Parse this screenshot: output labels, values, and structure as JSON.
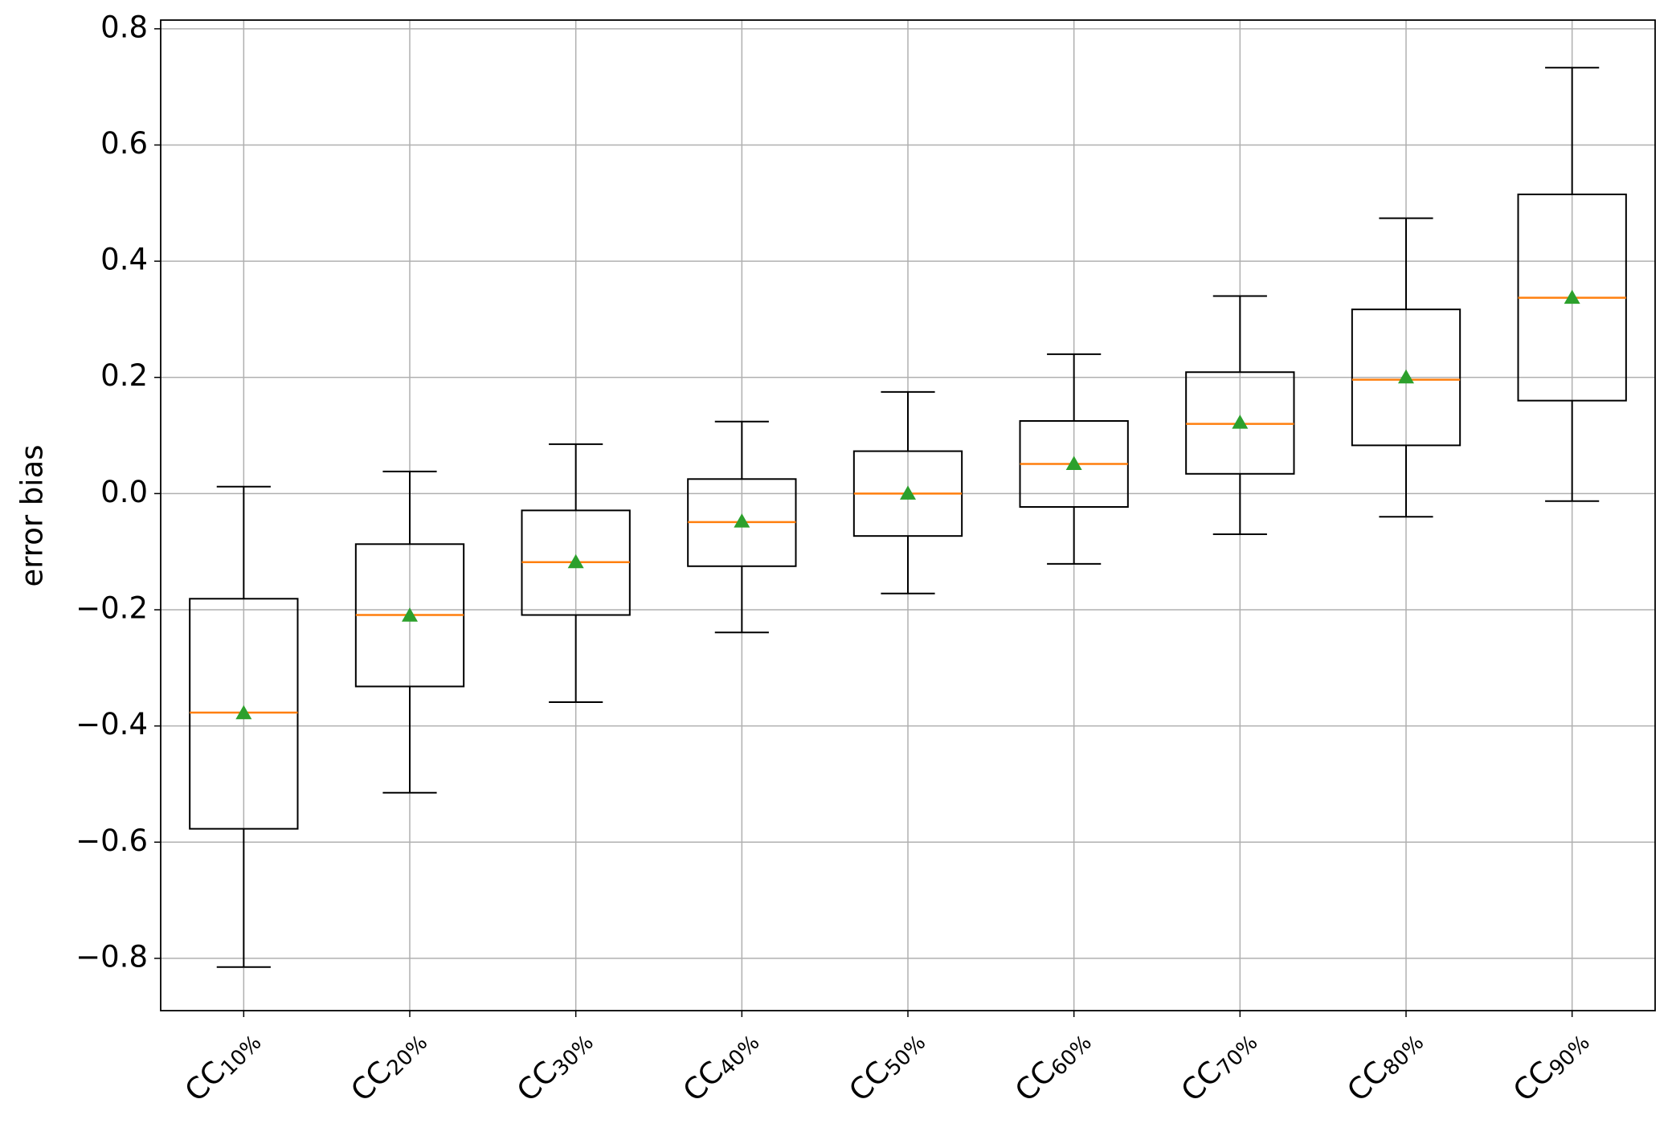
{
  "chart_data": {
    "type": "box",
    "ylabel": "error bias",
    "categories": [
      {
        "base": "CC",
        "sub": "10%"
      },
      {
        "base": "CC",
        "sub": "20%"
      },
      {
        "base": "CC",
        "sub": "30%"
      },
      {
        "base": "CC",
        "sub": "40%"
      },
      {
        "base": "CC",
        "sub": "50%"
      },
      {
        "base": "CC",
        "sub": "60%"
      },
      {
        "base": "CC",
        "sub": "70%"
      },
      {
        "base": "CC",
        "sub": "80%"
      },
      {
        "base": "CC",
        "sub": "90%"
      }
    ],
    "boxes": [
      {
        "whislo": -0.815,
        "q1": -0.577,
        "median": -0.377,
        "q3": -0.181,
        "whishi": 0.012,
        "mean": -0.378
      },
      {
        "whislo": -0.515,
        "q1": -0.332,
        "median": -0.209,
        "q3": -0.087,
        "whishi": 0.038,
        "mean": -0.21
      },
      {
        "whislo": -0.359,
        "q1": -0.209,
        "median": -0.118,
        "q3": -0.029,
        "whishi": 0.085,
        "mean": -0.118
      },
      {
        "whislo": -0.239,
        "q1": -0.125,
        "median": -0.049,
        "q3": 0.025,
        "whishi": 0.124,
        "mean": -0.048
      },
      {
        "whislo": -0.172,
        "q1": -0.073,
        "median": 0.0,
        "q3": 0.073,
        "whishi": 0.175,
        "mean": 0.0
      },
      {
        "whislo": -0.121,
        "q1": -0.023,
        "median": 0.051,
        "q3": 0.125,
        "whishi": 0.24,
        "mean": 0.051
      },
      {
        "whislo": -0.07,
        "q1": 0.034,
        "median": 0.12,
        "q3": 0.209,
        "whishi": 0.34,
        "mean": 0.122
      },
      {
        "whislo": -0.04,
        "q1": 0.083,
        "median": 0.196,
        "q3": 0.317,
        "whishi": 0.474,
        "mean": 0.2
      },
      {
        "whislo": -0.013,
        "q1": 0.16,
        "median": 0.337,
        "q3": 0.515,
        "whishi": 0.733,
        "mean": 0.337
      }
    ],
    "box_color": "#000000",
    "median_color": "#ff7f0e",
    "mean_color": "#2ca02c",
    "ylim": [
      -0.89,
      0.815
    ],
    "yticks": [
      {
        "value": -0.8,
        "label": "−0.8"
      },
      {
        "value": -0.6,
        "label": "−0.6"
      },
      {
        "value": -0.4,
        "label": "−0.4"
      },
      {
        "value": -0.2,
        "label": "−0.2"
      },
      {
        "value": 0,
        "label": "0.0"
      },
      0.2,
      0.4,
      0.6,
      0.8
    ],
    "grid": true
  }
}
